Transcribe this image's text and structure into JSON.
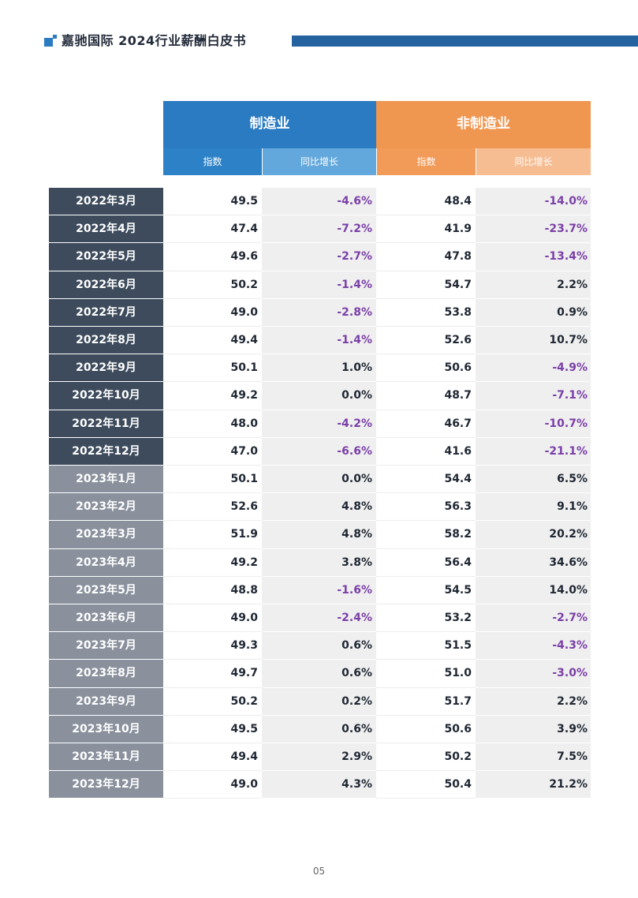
{
  "header": {
    "title": "嘉驰国际   2024行业薪酬白皮书",
    "accent_color": "#2a7bc1",
    "bar_color": "#2462a0"
  },
  "table": {
    "groups": [
      {
        "label": "制造业",
        "color": "#2a7bc1"
      },
      {
        "label": "非制造业",
        "color": "#ef9650"
      }
    ],
    "subheaders": [
      "指数",
      "同比增长",
      "指数",
      "同比增长"
    ],
    "rows": [
      {
        "month": "2022年3月",
        "mfg_index": "49.5",
        "mfg_yoy": "-4.6%",
        "non_index": "48.4",
        "non_yoy": "-14.0%"
      },
      {
        "month": "2022年4月",
        "mfg_index": "47.4",
        "mfg_yoy": "-7.2%",
        "non_index": "41.9",
        "non_yoy": "-23.7%"
      },
      {
        "month": "2022年5月",
        "mfg_index": "49.6",
        "mfg_yoy": "-2.7%",
        "non_index": "47.8",
        "non_yoy": "-13.4%"
      },
      {
        "month": "2022年6月",
        "mfg_index": "50.2",
        "mfg_yoy": "-1.4%",
        "non_index": "54.7",
        "non_yoy": "2.2%"
      },
      {
        "month": "2022年7月",
        "mfg_index": "49.0",
        "mfg_yoy": "-2.8%",
        "non_index": "53.8",
        "non_yoy": "0.9%"
      },
      {
        "month": "2022年8月",
        "mfg_index": "49.4",
        "mfg_yoy": "-1.4%",
        "non_index": "52.6",
        "non_yoy": "10.7%"
      },
      {
        "month": "2022年9月",
        "mfg_index": "50.1",
        "mfg_yoy": "1.0%",
        "non_index": "50.6",
        "non_yoy": "-4.9%"
      },
      {
        "month": "2022年10月",
        "mfg_index": "49.2",
        "mfg_yoy": "0.0%",
        "non_index": "48.7",
        "non_yoy": "-7.1%"
      },
      {
        "month": "2022年11月",
        "mfg_index": "48.0",
        "mfg_yoy": "-4.2%",
        "non_index": "46.7",
        "non_yoy": "-10.7%"
      },
      {
        "month": "2022年12月",
        "mfg_index": "47.0",
        "mfg_yoy": "-6.6%",
        "non_index": "41.6",
        "non_yoy": "-21.1%"
      },
      {
        "month": "2023年1月",
        "mfg_index": "50.1",
        "mfg_yoy": "0.0%",
        "non_index": "54.4",
        "non_yoy": "6.5%"
      },
      {
        "month": "2023年2月",
        "mfg_index": "52.6",
        "mfg_yoy": "4.8%",
        "non_index": "56.3",
        "non_yoy": "9.1%"
      },
      {
        "month": "2023年3月",
        "mfg_index": "51.9",
        "mfg_yoy": "4.8%",
        "non_index": "58.2",
        "non_yoy": "20.2%"
      },
      {
        "month": "2023年4月",
        "mfg_index": "49.2",
        "mfg_yoy": "3.8%",
        "non_index": "56.4",
        "non_yoy": "34.6%"
      },
      {
        "month": "2023年5月",
        "mfg_index": "48.8",
        "mfg_yoy": "-1.6%",
        "non_index": "54.5",
        "non_yoy": "14.0%"
      },
      {
        "month": "2023年6月",
        "mfg_index": "49.0",
        "mfg_yoy": "-2.4%",
        "non_index": "53.2",
        "non_yoy": "-2.7%"
      },
      {
        "month": "2023年7月",
        "mfg_index": "49.3",
        "mfg_yoy": "0.6%",
        "non_index": "51.5",
        "non_yoy": "-4.3%"
      },
      {
        "month": "2023年8月",
        "mfg_index": "49.7",
        "mfg_yoy": "0.6%",
        "non_index": "51.0",
        "non_yoy": "-3.0%"
      },
      {
        "month": "2023年9月",
        "mfg_index": "50.2",
        "mfg_yoy": "0.2%",
        "non_index": "51.7",
        "non_yoy": "2.2%"
      },
      {
        "month": "2023年10月",
        "mfg_index": "49.5",
        "mfg_yoy": "0.6%",
        "non_index": "50.6",
        "non_yoy": "3.9%"
      },
      {
        "month": "2023年11月",
        "mfg_index": "49.4",
        "mfg_yoy": "2.9%",
        "non_index": "50.2",
        "non_yoy": "7.5%"
      },
      {
        "month": "2023年12月",
        "mfg_index": "49.0",
        "mfg_yoy": "4.3%",
        "non_index": "50.4",
        "non_yoy": "21.2%"
      }
    ]
  },
  "footer": {
    "page_number": "05"
  }
}
